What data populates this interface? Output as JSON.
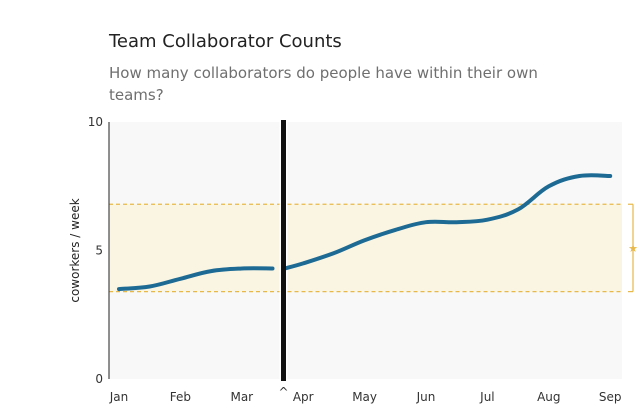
{
  "header": {
    "title": "Team Collaborator Counts",
    "subtitle": "How many collaborators do people have within their own teams?"
  },
  "colors": {
    "line": "#1d6b94",
    "band_fill": "#faf5e3",
    "band_border": "#e8b84a",
    "plot_bg": "#f8f8f8",
    "divider": "#111111"
  },
  "chart_data": {
    "type": "line",
    "title": "Team Collaborator Counts",
    "subtitle": "How many collaborators do people have within their own teams?",
    "ylabel": "coworkers / week",
    "xlabel": "",
    "ylim": [
      0,
      10
    ],
    "yticks": [
      0,
      5,
      10
    ],
    "categories": [
      "Jan",
      "Feb",
      "Mar",
      "Apr",
      "May",
      "Jun",
      "Jul",
      "Aug",
      "Sep"
    ],
    "break_marker": "^",
    "band": {
      "low": 3.4,
      "high": 6.8,
      "marker": "★"
    },
    "series": [
      {
        "segments": [
          {
            "x": [
              1.0,
              1.5,
              2.0,
              2.5,
              3.0,
              3.5
            ],
            "y": [
              3.5,
              3.6,
              3.9,
              4.2,
              4.3,
              4.3
            ]
          },
          {
            "x": [
              3.7,
              4.0,
              4.5,
              5.0,
              5.5,
              6.0,
              6.5,
              7.0,
              7.5,
              8.0,
              8.5,
              9.0
            ],
            "y": [
              4.3,
              4.5,
              4.9,
              5.4,
              5.8,
              6.1,
              6.1,
              6.2,
              6.6,
              7.5,
              7.9,
              7.9
            ]
          }
        ]
      }
    ],
    "grid": false
  }
}
